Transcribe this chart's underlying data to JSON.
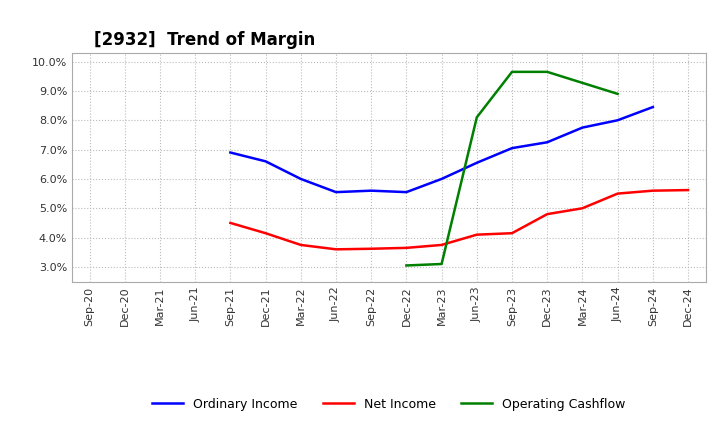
{
  "title": "[2932]  Trend of Margin",
  "x_labels": [
    "Sep-20",
    "Dec-20",
    "Mar-21",
    "Jun-21",
    "Sep-21",
    "Dec-21",
    "Mar-22",
    "Jun-22",
    "Sep-22",
    "Dec-22",
    "Mar-23",
    "Jun-23",
    "Sep-23",
    "Dec-23",
    "Mar-24",
    "Jun-24",
    "Sep-24",
    "Dec-24"
  ],
  "ordinary_income": [
    null,
    null,
    null,
    null,
    6.9,
    6.6,
    6.0,
    5.55,
    5.6,
    5.55,
    6.0,
    6.55,
    7.05,
    7.25,
    7.75,
    8.0,
    8.45,
    null
  ],
  "net_income": [
    null,
    null,
    null,
    null,
    4.5,
    4.15,
    3.75,
    3.6,
    3.62,
    3.65,
    3.75,
    4.1,
    4.15,
    4.8,
    5.0,
    5.5,
    5.6,
    5.62
  ],
  "operating_cashflow": [
    null,
    null,
    null,
    null,
    null,
    null,
    null,
    null,
    null,
    3.05,
    3.1,
    8.1,
    9.65,
    9.65,
    null,
    8.9,
    null,
    null
  ],
  "ylim": [
    2.5,
    10.3
  ],
  "yticks": [
    3.0,
    4.0,
    5.0,
    6.0,
    7.0,
    8.0,
    9.0,
    10.0
  ],
  "color_blue": "#0000FF",
  "color_red": "#FF0000",
  "color_green": "#008000",
  "background_color": "#FFFFFF",
  "grid_color": "#BBBBBB",
  "legend_labels": [
    "Ordinary Income",
    "Net Income",
    "Operating Cashflow"
  ],
  "title_fontsize": 12,
  "tick_fontsize": 8,
  "legend_fontsize": 9,
  "linewidth": 1.8
}
